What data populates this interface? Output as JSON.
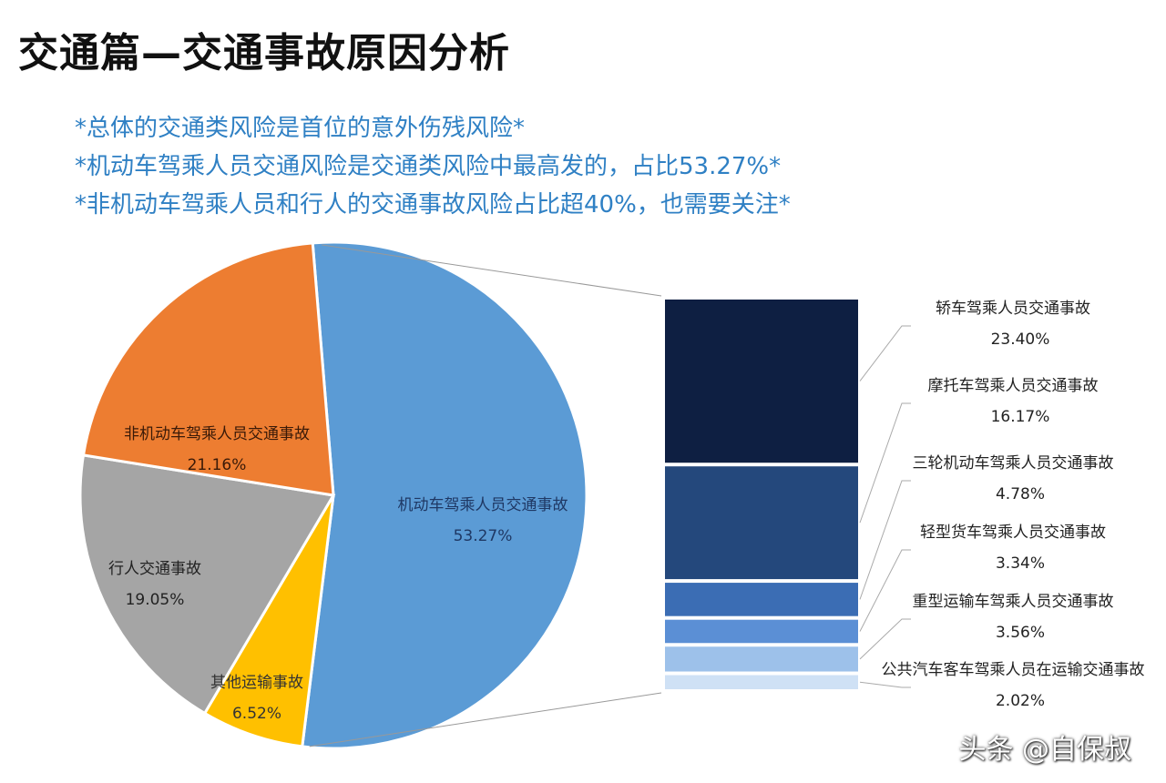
{
  "title": "交通篇—交通事故原因分析",
  "subtitles": [
    "*总体的交通类风险是首位的意外伤残风险*",
    "*机动车驾乘人员交通风险是交通类风险中最高发的，占比53.27%*",
    "*非机动车驾乘人员和行人的交通事故风险占比超40%，也需要关注*"
  ],
  "watermark": "头条 @自保叔",
  "chart_data": {
    "type": "pie-of-bar",
    "pie": {
      "slices": [
        {
          "label": "机动车驾乘人员交通事故",
          "value": 53.27,
          "value_label": "53.27%",
          "color": "#5b9bd5",
          "text_color": "#1f3864"
        },
        {
          "label": "其他运输事故",
          "value": 6.52,
          "value_label": "6.52%",
          "color": "#ffc000",
          "text_color": "#333333"
        },
        {
          "label": "行人交通事故",
          "value": 19.05,
          "value_label": "19.05%",
          "color": "#a5a5a5",
          "text_color": "#222222"
        },
        {
          "label": "非机动车驾乘人员交通事故",
          "value": 21.16,
          "value_label": "21.16%",
          "color": "#ed7d31",
          "text_color": "#3a1a08"
        }
      ]
    },
    "bar": {
      "exploded_from": "机动车驾乘人员交通事故",
      "segments": [
        {
          "label": "轿车驾乘人员交通事故",
          "value": 23.4,
          "value_label": "23.40%",
          "color": "#0e1f42"
        },
        {
          "label": "摩托车驾乘人员交通事故",
          "value": 16.17,
          "value_label": "16.17%",
          "color": "#24487c"
        },
        {
          "label": "三轮机动车驾乘人员交通事故",
          "value": 4.78,
          "value_label": "4.78%",
          "color": "#3b6db4"
        },
        {
          "label": "轻型货车驾乘人员交通事故",
          "value": 3.34,
          "value_label": "3.34%",
          "color": "#5b8fd5"
        },
        {
          "label": "重型运输车驾乘人员交通事故",
          "value": 3.56,
          "value_label": "3.56%",
          "color": "#9dc1ea"
        },
        {
          "label": "公共汽车客车驾乘人员在运输交通事故",
          "value": 2.02,
          "value_label": "2.02%",
          "color": "#cfe1f5"
        }
      ]
    }
  }
}
